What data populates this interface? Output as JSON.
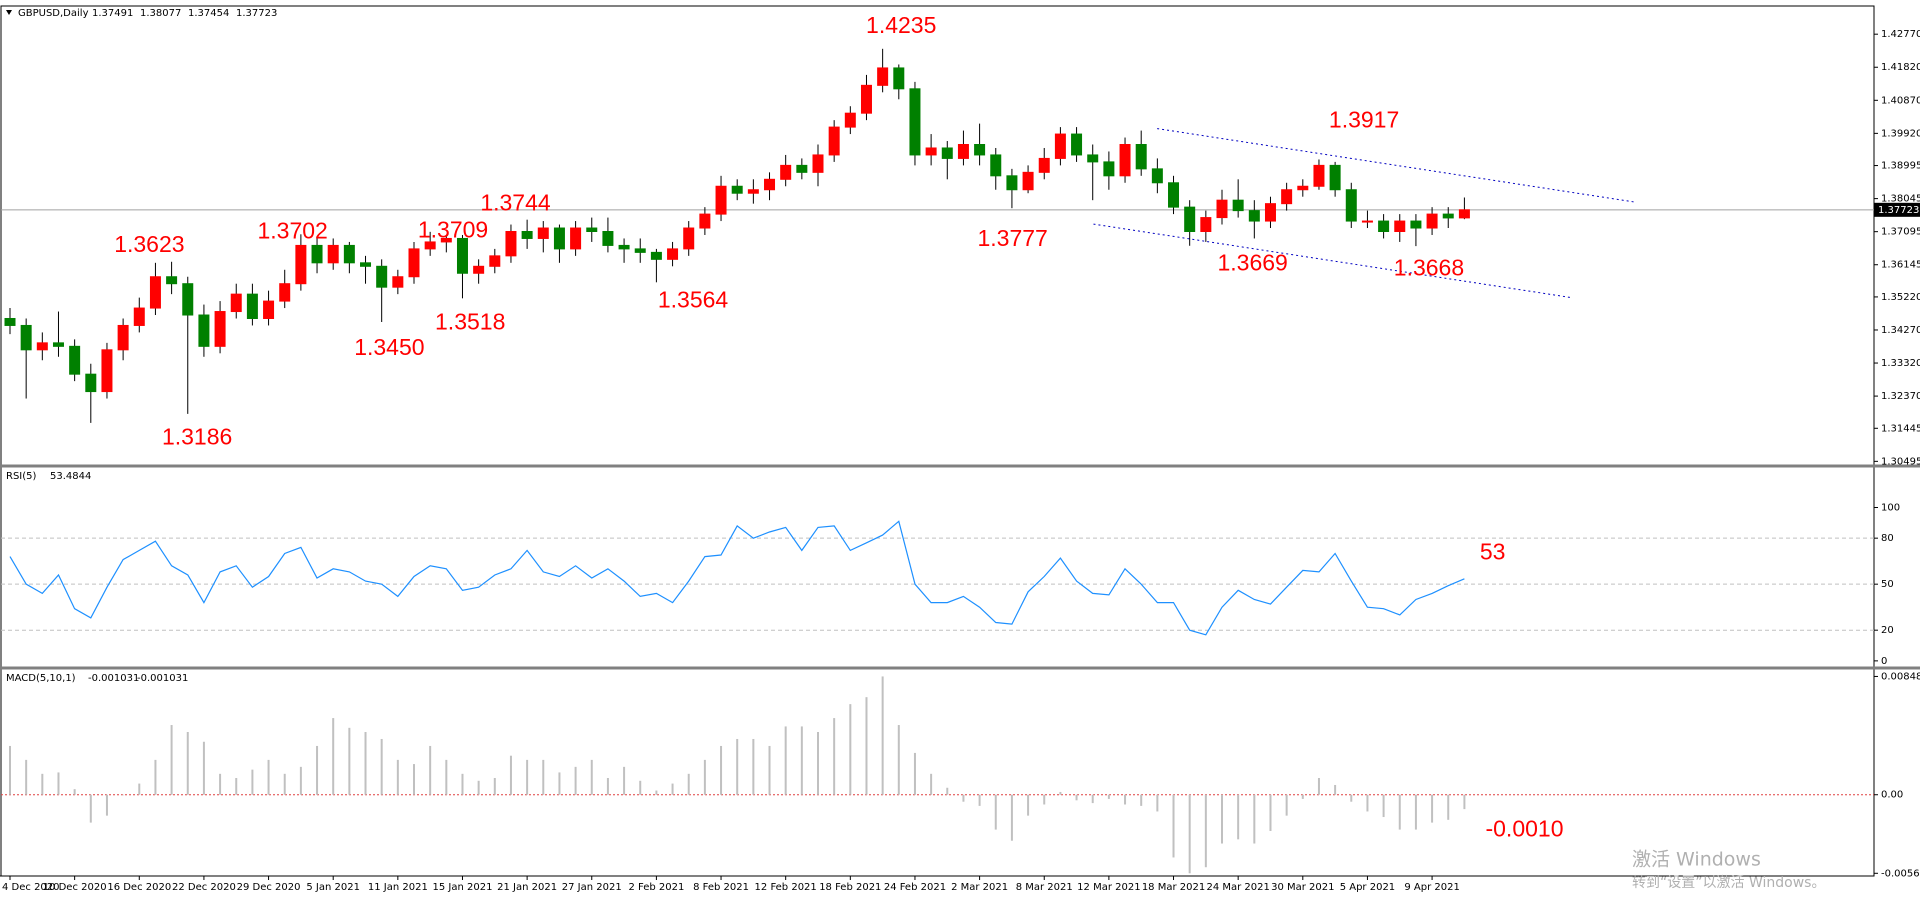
{
  "chart_data": [
    {
      "type": "candlestick",
      "symbol": "GBPUSD,Daily",
      "categories": [
        "4 Dec 2020",
        null,
        null,
        null,
        "10 Dec 2020",
        null,
        null,
        null,
        "16 Dec 2020",
        null,
        null,
        null,
        "22 Dec 2020",
        null,
        null,
        null,
        "29 Dec 2020",
        null,
        null,
        null,
        "5 Jan 2021",
        null,
        null,
        null,
        "11 Jan 2021",
        null,
        null,
        null,
        "15 Jan 2021",
        null,
        null,
        null,
        "21 Jan 2021",
        null,
        null,
        null,
        "27 Jan 2021",
        null,
        null,
        null,
        "2 Feb 2021",
        null,
        null,
        null,
        "8 Feb 2021",
        null,
        null,
        null,
        "12 Feb 2021",
        null,
        null,
        null,
        "18 Feb 2021",
        null,
        null,
        null,
        "24 Feb 2021",
        null,
        null,
        null,
        "2 Mar 2021",
        null,
        null,
        null,
        "8 Mar 2021",
        null,
        null,
        null,
        "12 Mar 2021",
        null,
        null,
        null,
        "18 Mar 2021",
        null,
        null,
        null,
        "24 Mar 2021",
        null,
        null,
        null,
        "30 Mar 2021",
        null,
        null,
        null,
        "5 Apr 2021",
        null,
        null,
        null,
        "9 Apr 2021",
        null,
        null
      ],
      "open": [
        1.346,
        1.344,
        1.337,
        1.339,
        1.338,
        1.33,
        1.325,
        1.337,
        1.344,
        1.349,
        1.358,
        1.356,
        1.347,
        1.338,
        1.348,
        1.353,
        1.346,
        1.351,
        1.356,
        1.367,
        1.362,
        1.367,
        1.362,
        1.361,
        1.355,
        1.358,
        1.366,
        1.368,
        1.369,
        1.359,
        1.361,
        1.364,
        1.371,
        1.369,
        1.372,
        1.366,
        1.372,
        1.371,
        1.367,
        1.366,
        1.365,
        1.363,
        1.366,
        1.372,
        1.376,
        1.384,
        1.382,
        1.383,
        1.386,
        1.39,
        1.388,
        1.393,
        1.401,
        1.405,
        1.413,
        1.418,
        1.412,
        1.393,
        1.395,
        1.392,
        1.396,
        1.393,
        1.387,
        1.383,
        1.388,
        1.392,
        1.399,
        1.393,
        1.391,
        1.387,
        1.396,
        1.389,
        1.385,
        1.378,
        1.371,
        1.375,
        1.38,
        1.377,
        1.374,
        1.379,
        1.383,
        1.384,
        1.39,
        1.383,
        1.374,
        1.374,
        1.371,
        1.374,
        1.372,
        1.376,
        1.37491
      ],
      "high": [
        1.349,
        1.346,
        1.342,
        1.348,
        1.34,
        1.333,
        1.339,
        1.346,
        1.352,
        1.362,
        1.3623,
        1.358,
        1.35,
        1.351,
        1.356,
        1.356,
        1.354,
        1.36,
        1.3702,
        1.369,
        1.369,
        1.368,
        1.364,
        1.363,
        1.36,
        1.368,
        1.3709,
        1.37,
        1.37,
        1.363,
        1.366,
        1.373,
        1.3744,
        1.374,
        1.373,
        1.374,
        1.375,
        1.375,
        1.369,
        1.369,
        1.366,
        1.368,
        1.374,
        1.378,
        1.387,
        1.386,
        1.386,
        1.388,
        1.393,
        1.392,
        1.396,
        1.403,
        1.407,
        1.416,
        1.4235,
        1.419,
        1.414,
        1.399,
        1.397,
        1.4,
        1.402,
        1.395,
        1.389,
        1.39,
        1.395,
        1.401,
        1.401,
        1.396,
        1.394,
        1.398,
        1.4,
        1.392,
        1.387,
        1.38,
        1.377,
        1.383,
        1.386,
        1.38,
        1.381,
        1.385,
        1.386,
        1.3917,
        1.391,
        1.385,
        1.377,
        1.376,
        1.376,
        1.376,
        1.378,
        1.378,
        1.38077
      ],
      "low": [
        1.3415,
        1.323,
        1.334,
        1.335,
        1.328,
        1.316,
        1.323,
        1.334,
        1.342,
        1.347,
        1.353,
        1.3186,
        1.335,
        1.336,
        1.346,
        1.344,
        1.344,
        1.349,
        1.354,
        1.359,
        1.36,
        1.359,
        1.356,
        1.345,
        1.353,
        1.356,
        1.364,
        1.365,
        1.3518,
        1.356,
        1.359,
        1.362,
        1.366,
        1.365,
        1.362,
        1.364,
        1.368,
        1.365,
        1.362,
        1.362,
        1.3564,
        1.361,
        1.364,
        1.37,
        1.374,
        1.38,
        1.379,
        1.38,
        1.384,
        1.386,
        1.384,
        1.391,
        1.399,
        1.403,
        1.411,
        1.409,
        1.39,
        1.39,
        1.386,
        1.39,
        1.39,
        1.383,
        1.3777,
        1.382,
        1.386,
        1.39,
        1.391,
        1.38,
        1.383,
        1.385,
        1.387,
        1.382,
        1.376,
        1.3669,
        1.368,
        1.373,
        1.375,
        1.369,
        1.372,
        1.377,
        1.381,
        1.383,
        1.381,
        1.372,
        1.372,
        1.369,
        1.368,
        1.3668,
        1.37,
        1.372,
        1.37454
      ],
      "close": [
        1.344,
        1.337,
        1.339,
        1.338,
        1.33,
        1.325,
        1.337,
        1.344,
        1.349,
        1.358,
        1.356,
        1.347,
        1.338,
        1.348,
        1.353,
        1.346,
        1.351,
        1.356,
        1.367,
        1.362,
        1.367,
        1.362,
        1.361,
        1.355,
        1.358,
        1.366,
        1.368,
        1.369,
        1.359,
        1.361,
        1.364,
        1.371,
        1.369,
        1.372,
        1.366,
        1.372,
        1.371,
        1.367,
        1.366,
        1.365,
        1.363,
        1.366,
        1.372,
        1.376,
        1.384,
        1.382,
        1.383,
        1.386,
        1.39,
        1.388,
        1.393,
        1.401,
        1.405,
        1.413,
        1.418,
        1.412,
        1.393,
        1.395,
        1.392,
        1.396,
        1.393,
        1.387,
        1.383,
        1.388,
        1.392,
        1.399,
        1.393,
        1.391,
        1.387,
        1.396,
        1.389,
        1.385,
        1.378,
        1.371,
        1.375,
        1.38,
        1.377,
        1.374,
        1.379,
        1.383,
        1.384,
        1.39,
        1.383,
        1.374,
        1.374,
        1.371,
        1.374,
        1.372,
        1.376,
        1.3749,
        1.37723
      ],
      "up_color": "#ff0000",
      "down_color": "#008000",
      "ylim": [
        1.3039,
        1.4358
      ],
      "yticks": [
        {
          "value": 1.4277,
          "label": "1.42770"
        },
        {
          "value": 1.4182,
          "label": "1.41820"
        },
        {
          "value": 1.4087,
          "label": "1.40870"
        },
        {
          "value": 1.3992,
          "label": "1.39920"
        },
        1.38995,
        1.38045,
        1.37095,
        1.36145,
        {
          "value": 1.3522,
          "label": "1.35220"
        },
        {
          "value": 1.3427,
          "label": "1.34270"
        },
        {
          "value": 1.3332,
          "label": "1.33320"
        },
        {
          "value": 1.3237,
          "label": "1.32370"
        },
        1.31445,
        1.30495
      ],
      "annotations": [
        "1.4235",
        "1.3623",
        "1.3702",
        "1.3744",
        "1.3709",
        "1.3186",
        "1.3450",
        "1.3518",
        "1.3564",
        "1.3777",
        "1.3917",
        "1.3669",
        "1.3668"
      ]
    },
    {
      "type": "line",
      "title": "RSI(5)",
      "color": "#1e90ff",
      "values": [
        68,
        50,
        44,
        56,
        34,
        28,
        48,
        66,
        72,
        78,
        62,
        56,
        38,
        58,
        62,
        48,
        55,
        70,
        74,
        54,
        60,
        58,
        52,
        50,
        42,
        55,
        62,
        60,
        46,
        48,
        56,
        60,
        72,
        58,
        55,
        62,
        54,
        60,
        52,
        42,
        44,
        38,
        52,
        68,
        69,
        88,
        80,
        84,
        87,
        72,
        87,
        88,
        72,
        77,
        82,
        91,
        50,
        38,
        38,
        42,
        35,
        25,
        24,
        45,
        55,
        67,
        52,
        44,
        43,
        60,
        50,
        38,
        38,
        20,
        17,
        35,
        46,
        40,
        37,
        48,
        59,
        58,
        70,
        52,
        35,
        34,
        30,
        40,
        44,
        49,
        53.4844
      ],
      "ylim": [
        -4,
        126.4
      ],
      "yticks": [
        100,
        80,
        50,
        20,
        0
      ],
      "annotations": [
        "53"
      ]
    },
    {
      "type": "bar",
      "title": "MACD(5,10,1)",
      "color": "#c0c0c0",
      "values": [
        0.0035,
        0.0025,
        0.0015,
        0.0016,
        0.0004,
        -0.002,
        -0.0015,
        0,
        0.0008,
        0.0025,
        0.005,
        0.0045,
        0.0038,
        0.0015,
        0.0012,
        0.0018,
        0.0025,
        0.0015,
        0.002,
        0.0035,
        0.0055,
        0.0048,
        0.0045,
        0.004,
        0.0025,
        0.0022,
        0.0035,
        0.0025,
        0.0015,
        0.001,
        0.0012,
        0.0028,
        0.0025,
        0.0025,
        0.0016,
        0.002,
        0.0025,
        0.0012,
        0.002,
        0.001,
        0.0003,
        0.0008,
        0.0015,
        0.0025,
        0.0035,
        0.004,
        0.004,
        0.0035,
        0.0049,
        0.0049,
        0.0045,
        0.0055,
        0.0065,
        0.007,
        0.008486,
        0.005,
        0.003,
        0.0015,
        0.0005,
        -0.0005,
        -0.0008,
        -0.0025,
        -0.0033,
        -0.0015,
        -0.0007,
        0.0002,
        -0.0004,
        -0.0006,
        -0.0003,
        -0.0007,
        -0.0008,
        -0.0012,
        -0.0045,
        -0.005636,
        -0.0052,
        -0.0035,
        -0.0032,
        -0.0035,
        -0.0026,
        -0.0015,
        -0.0003,
        0.0012,
        0.0007,
        -0.0005,
        -0.0012,
        -0.0016,
        -0.0025,
        -0.0025,
        -0.002,
        -0.0018,
        -0.001031
      ],
      "ylim": [
        -0.00583,
        0.00902
      ],
      "yticks": [
        0.008486,
        {
          "value": 0,
          "label": "0.00"
        },
        -0.005636
      ],
      "annotations": [
        "-0.0010"
      ]
    }
  ],
  "watermark": [
    "激活 Windows",
    "转到“设置”以激活 Windows。"
  ]
}
